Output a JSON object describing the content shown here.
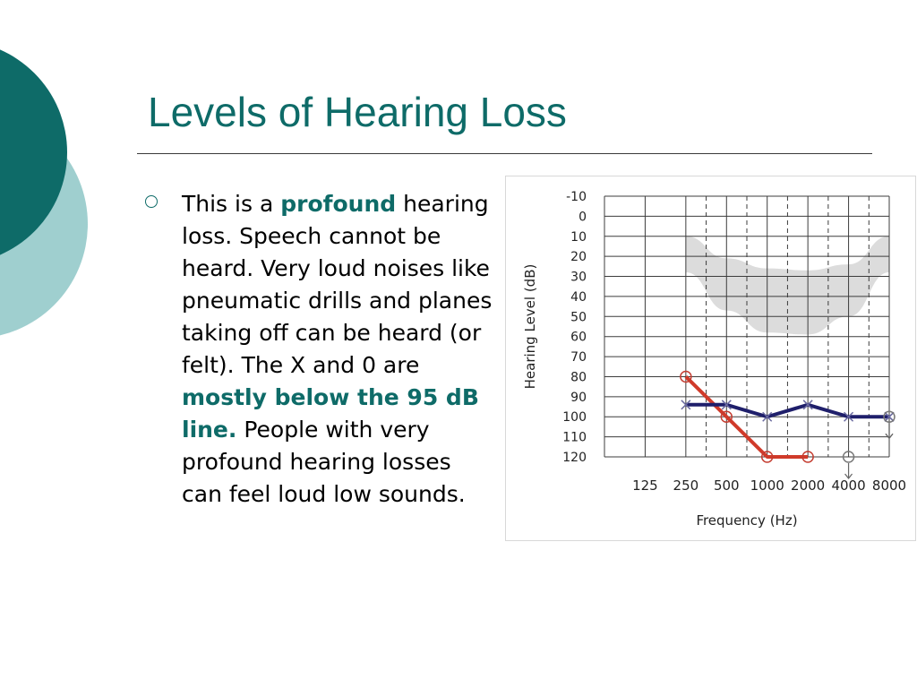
{
  "slide": {
    "title": "Levels of Hearing Loss",
    "colors": {
      "accent": "#0e6b68",
      "circle_dark": "#0e6b68",
      "circle_light": "#9fcfcf"
    }
  },
  "bullet": {
    "p1": "This is a ",
    "p2": "profound",
    "p3": " hearing loss. Speech cannot be heard.  Very loud noises like pneumatic drills and planes taking off can be heard (or felt). The X and 0 are ",
    "p4": "mostly below the 95 dB line.",
    "p5": "  People with very profound hearing losses can feel loud low sounds."
  },
  "chart_data": {
    "type": "line",
    "xlabel": "Frequency (Hz)",
    "ylabel": "Hearing Level (dB)",
    "categories": [
      "125",
      "250",
      "500",
      "1000",
      "2000",
      "4000",
      "8000"
    ],
    "y_ticks": [
      "-10",
      "0",
      "10",
      "20",
      "30",
      "40",
      "50",
      "60",
      "70",
      "80",
      "90",
      "100",
      "110",
      "120"
    ],
    "ylim": [
      -10,
      120
    ],
    "y_inverted": true,
    "grid": true,
    "dashed_intermediate_frequencies": true,
    "speech_banana": {
      "color": "#dcdcdc",
      "upper_edge": [
        [
          250,
          10
        ],
        [
          500,
          21
        ],
        [
          1000,
          26
        ],
        [
          2000,
          27
        ],
        [
          4000,
          24
        ],
        [
          8000,
          10
        ]
      ],
      "lower_edge": [
        [
          250,
          28
        ],
        [
          500,
          47
        ],
        [
          1000,
          58
        ],
        [
          2000,
          59
        ],
        [
          4000,
          50
        ],
        [
          8000,
          28
        ]
      ]
    },
    "series": [
      {
        "marker": "O",
        "color": "#d03a2a",
        "points": [
          [
            250,
            80
          ],
          [
            500,
            100
          ],
          [
            1000,
            120
          ],
          [
            2000,
            120
          ]
        ],
        "no_response": [
          [
            4000,
            120
          ]
        ]
      },
      {
        "marker": "X",
        "color": "#1f1f6b",
        "points": [
          [
            250,
            94
          ],
          [
            500,
            94
          ],
          [
            1000,
            100
          ],
          [
            2000,
            94
          ],
          [
            4000,
            100
          ],
          [
            8000,
            100
          ]
        ],
        "no_response": [
          [
            8000,
            100
          ]
        ]
      }
    ]
  }
}
